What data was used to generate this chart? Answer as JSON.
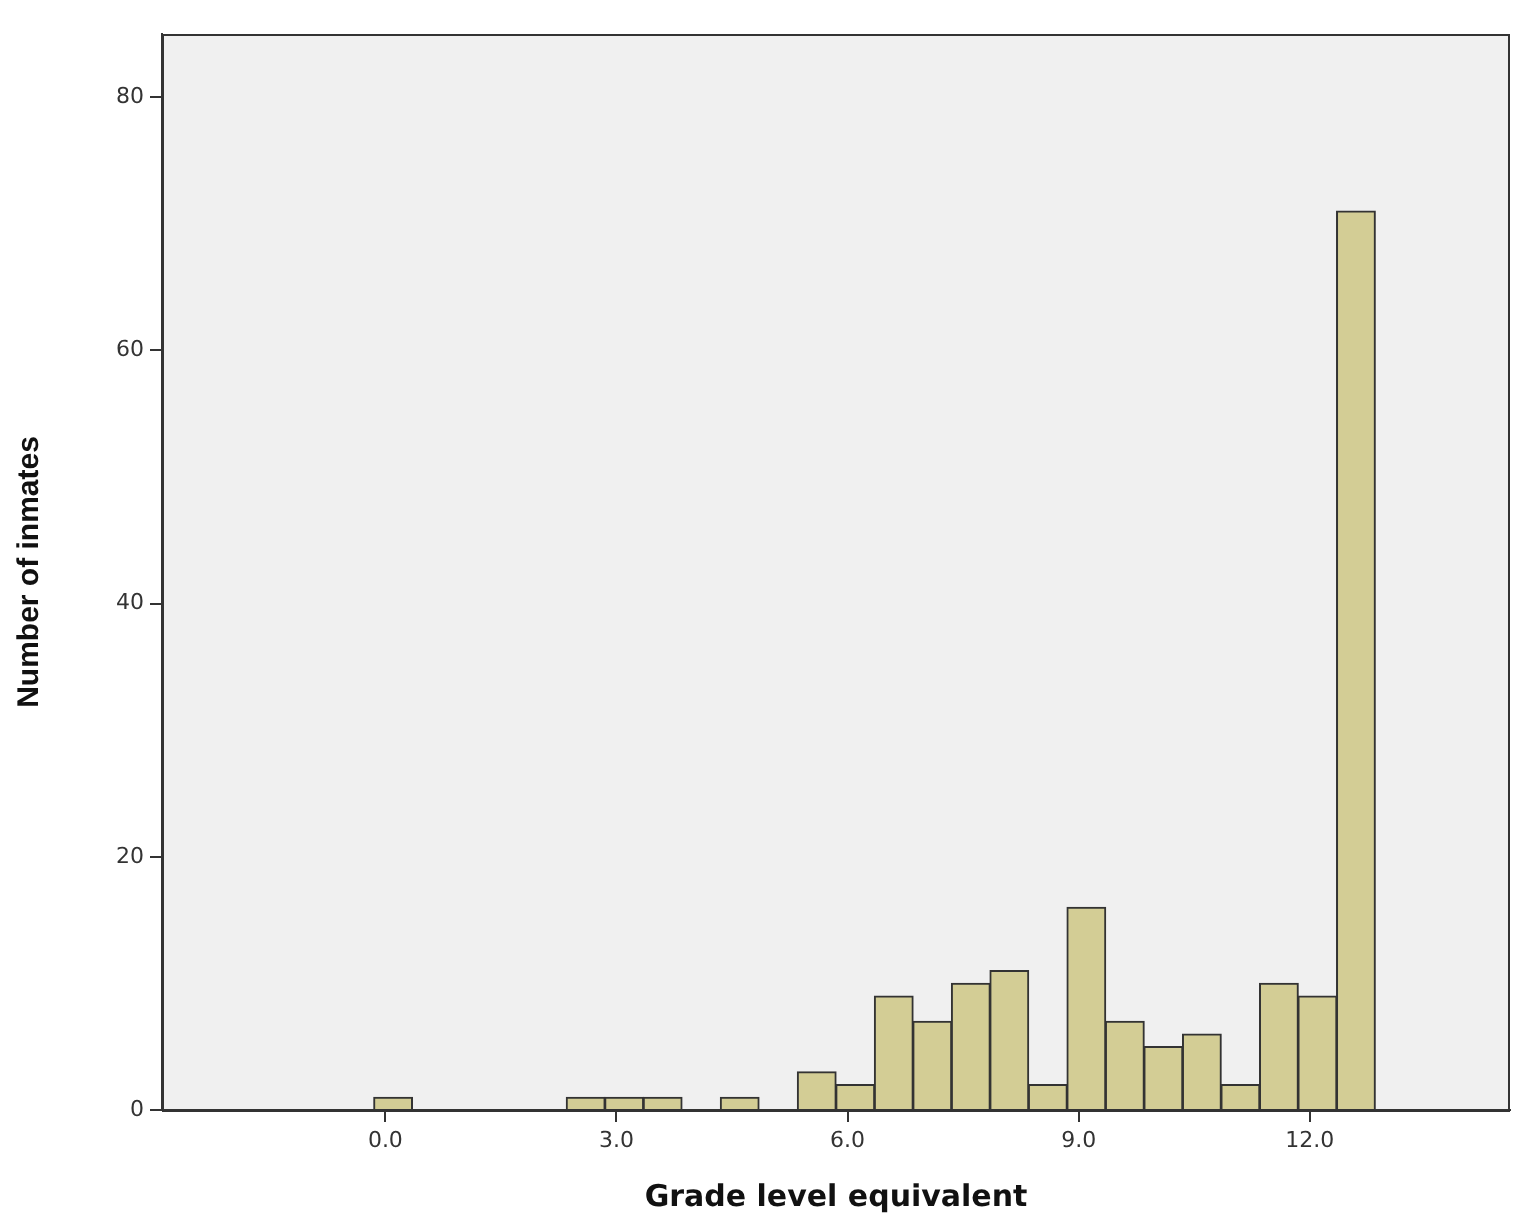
{
  "chart_data": {
    "type": "histogram",
    "xlabel": "Grade level equivalent",
    "ylabel": "Number of inmates",
    "bins": [
      -0.15,
      0.35,
      0.85,
      1.35,
      1.85,
      2.35,
      2.85,
      3.35,
      3.85,
      4.35,
      4.85,
      5.35,
      5.85,
      6.35,
      6.85,
      7.35,
      7.85,
      8.35,
      8.85,
      9.35,
      9.85,
      10.35,
      10.85,
      11.35,
      11.85,
      12.35,
      12.85
    ],
    "values": [
      1,
      0,
      0,
      0,
      0,
      1,
      1,
      1,
      0,
      1,
      0,
      3,
      2,
      9,
      7,
      10,
      11,
      2,
      16,
      7,
      5,
      6,
      2,
      10,
      9,
      71
    ],
    "color": "#d3cd95",
    "xlim": [
      -2.9,
      14.6
    ],
    "xticks": [
      {
        "value": 0,
        "label": "0.0"
      },
      {
        "value": 3,
        "label": "3.0"
      },
      {
        "value": 6,
        "label": "6.0"
      },
      {
        "value": 9,
        "label": "9.0"
      },
      {
        "value": 12,
        "label": "12.0"
      }
    ],
    "ylim": [
      0,
      85
    ],
    "yticks": [
      0,
      20,
      40,
      60,
      80
    ],
    "grid": false,
    "legend": false
  }
}
